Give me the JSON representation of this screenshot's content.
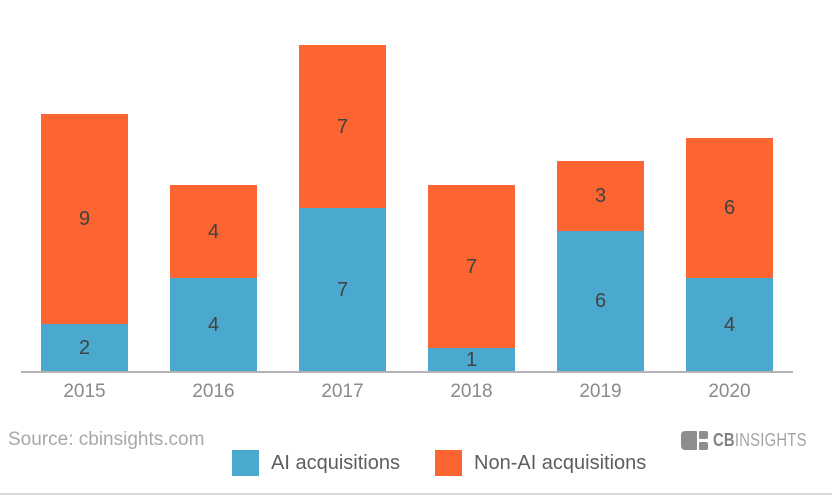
{
  "chart_data": {
    "type": "bar",
    "stacked": true,
    "title": "",
    "xlabel": "",
    "ylabel": "",
    "grid": false,
    "legend_position": "bottom",
    "ylim": [
      0,
      14
    ],
    "categories": [
      "2015",
      "2016",
      "2017",
      "2018",
      "2019",
      "2020"
    ],
    "series": [
      {
        "name": "AI acquisitions",
        "color": "#4BA8CF",
        "values": [
          2,
          4,
          7,
          1,
          6,
          4
        ]
      },
      {
        "name": "Non-AI acquisitions",
        "color": "#FC6432",
        "values": [
          9,
          4,
          7,
          7,
          3,
          6
        ]
      }
    ],
    "totals": [
      11,
      8,
      14,
      8,
      9,
      10
    ]
  },
  "footer": {
    "source": "Source: cbinsights.com",
    "logo_bold": "CB",
    "logo_light": "INSIGHTS"
  },
  "colors": {
    "ai_blue": "#4BA8CF",
    "non_ai_orange": "#FC6432",
    "axis_line": "#B3B3B3",
    "value_label": "#424242",
    "tick_label": "#8A8A8A",
    "source_text": "#A8A8A8",
    "logo_gray": "#8E8E8E"
  }
}
